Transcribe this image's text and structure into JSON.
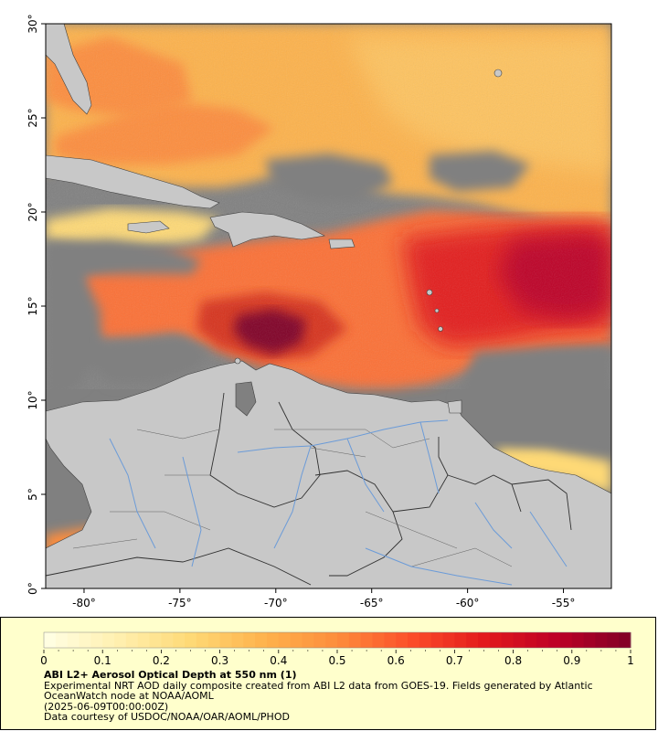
{
  "map": {
    "lon_range": [
      -82,
      -52.5
    ],
    "lat_range": [
      0,
      30
    ],
    "x_ticks": [
      {
        "value": -80,
        "label": "-80°"
      },
      {
        "value": -75,
        "label": "-75°"
      },
      {
        "value": -70,
        "label": "-70°"
      },
      {
        "value": -65,
        "label": "-65°"
      },
      {
        "value": -60,
        "label": "-60°"
      },
      {
        "value": -55,
        "label": "-55°"
      }
    ],
    "y_ticks": [
      {
        "value": 0,
        "label": "0°"
      },
      {
        "value": 5,
        "label": "5°"
      },
      {
        "value": 10,
        "label": "10°"
      },
      {
        "value": 15,
        "label": "15°"
      },
      {
        "value": 20,
        "label": "20°"
      },
      {
        "value": 25,
        "label": "25°"
      },
      {
        "value": 30,
        "label": "30°"
      }
    ],
    "colors": {
      "no_data": "#808080",
      "land": "#c8c8c8",
      "rivers": "#6b9bd8",
      "borders": "#303030"
    }
  },
  "colorbar": {
    "range": [
      0,
      1
    ],
    "ticks": [
      "0",
      "0.1",
      "0.2",
      "0.3",
      "0.4",
      "0.5",
      "0.6",
      "0.7",
      "0.8",
      "0.9",
      "1"
    ],
    "colors": [
      "#ffffe5",
      "#fff0b0",
      "#fed976",
      "#feb24c",
      "#fd8d3c",
      "#fc4e2a",
      "#e31a1c",
      "#bd0026",
      "#800026"
    ]
  },
  "caption": {
    "title": "ABI L2+ Aerosol Optical Depth at 550 nm (1)",
    "line1": "Experimental NRT AOD daily composite created from ABI L2 data from GOES-19. Fields generated by Atlantic OceanWatch node at NOAA/AOML",
    "line2": "(2025-06-09T00:00:00Z)",
    "line3": "Data courtesy of USDOC/NOAA/OAR/AOML/PHOD"
  }
}
